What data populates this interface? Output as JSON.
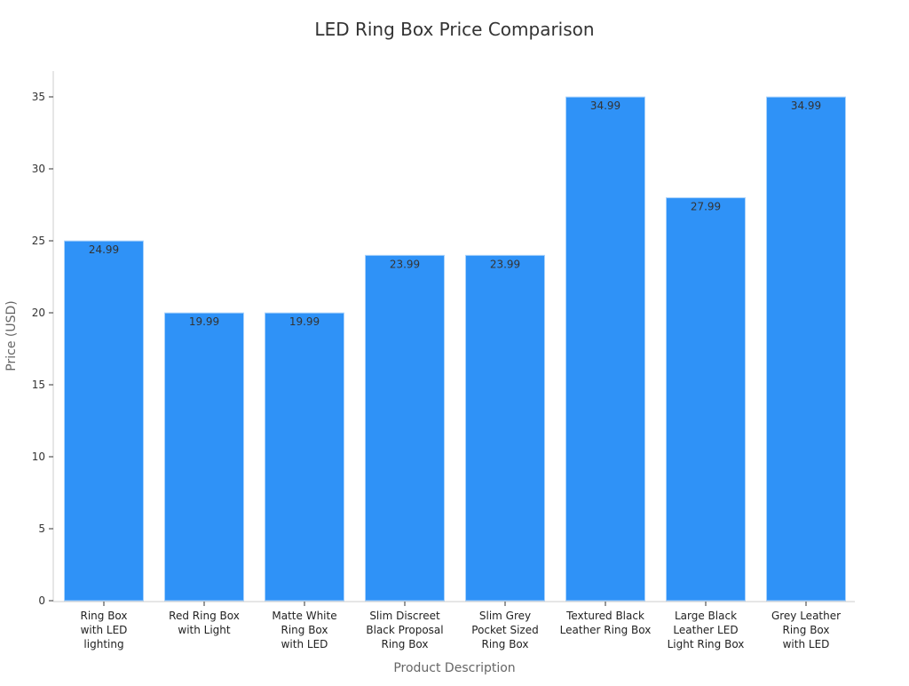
{
  "chart_data": {
    "type": "bar",
    "title": "LED Ring Box Price Comparison",
    "xlabel": "Product Description",
    "ylabel": "Price (USD)",
    "ylim": [
      0,
      37
    ],
    "yticks": [
      0,
      5,
      10,
      15,
      20,
      25,
      30,
      35
    ],
    "grid": false,
    "categories": [
      [
        "Ring Box",
        "with LED",
        "lighting"
      ],
      [
        "Red Ring Box",
        "with Light"
      ],
      [
        "Matte White",
        "Ring Box",
        "with LED"
      ],
      [
        "Slim Discreet",
        "Black Proposal",
        "Ring Box"
      ],
      [
        "Slim Grey",
        "Pocket Sized",
        "Ring Box"
      ],
      [
        "Textured Black",
        "Leather Ring Box"
      ],
      [
        "Large Black",
        "Leather LED",
        "Light Ring Box"
      ],
      [
        "Grey Leather",
        "Ring Box",
        "with LED"
      ]
    ],
    "values": [
      24.99,
      19.99,
      19.99,
      23.99,
      23.99,
      34.99,
      27.99,
      34.99
    ],
    "data_labels": [
      "24.99",
      "19.99",
      "19.99",
      "23.99",
      "23.99",
      "34.99",
      "27.99",
      "34.99"
    ],
    "colors": {
      "bar": "#2f92f7",
      "bar_edge": "#a9d2fb",
      "text": "#333333",
      "axis": "#cccccc"
    }
  }
}
